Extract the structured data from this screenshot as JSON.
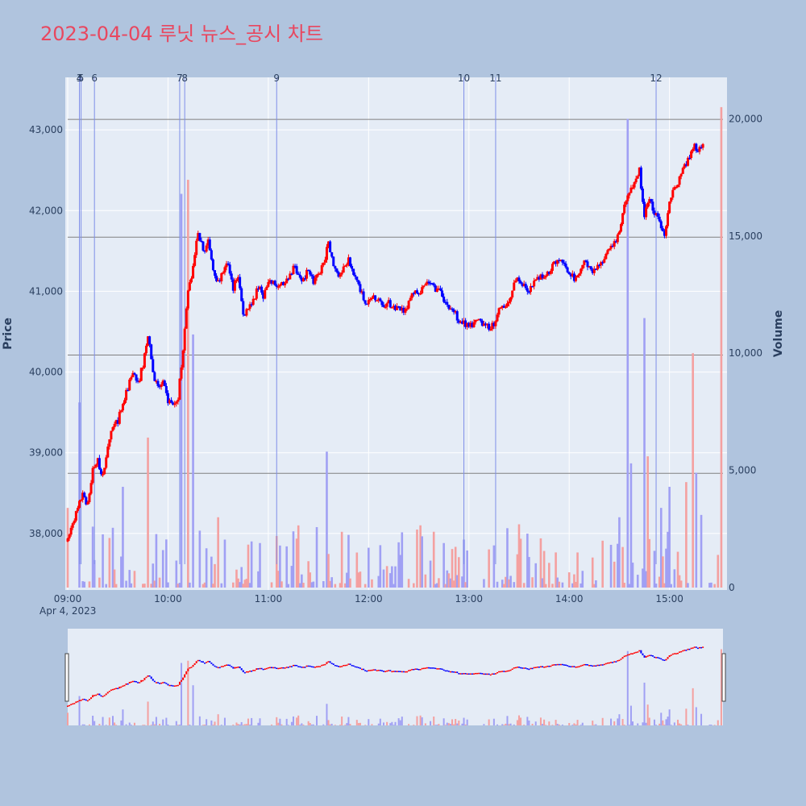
{
  "title": "2023-04-04 루닛 뉴스_공시 차트",
  "chart_data": {
    "type": "candlestick",
    "title": "2023-04-04 루닛 뉴스_공시 차트",
    "date_label": "Apr 4, 2023",
    "x_ticks": [
      "09:00",
      "10:00",
      "11:00",
      "12:00",
      "13:00",
      "14:00",
      "15:00"
    ],
    "x_range": [
      "09:00",
      "15:32"
    ],
    "y_left": {
      "label": "Price",
      "range": [
        37300,
        43650
      ],
      "ticks": [
        "38,000",
        "39,000",
        "40,000",
        "41,000",
        "42,000",
        "43,000"
      ],
      "tick_values": [
        38000,
        39000,
        40000,
        41000,
        42000,
        43000
      ]
    },
    "y_right": {
      "label": "Volume",
      "range": [
        0,
        20600
      ],
      "ticks": [
        "0",
        "5,000",
        "10,000",
        "15,000",
        "20,000"
      ],
      "tick_values": [
        0,
        5000,
        10000,
        15000,
        20000
      ]
    },
    "colors": {
      "up": "#ff0000",
      "down": "#0000ff",
      "vol_up": "#f4a0a0",
      "vol_down": "#a0a0f4",
      "event_line": "#7f8fe8",
      "hline": "#808080",
      "plot_bg": "#e5ecf6"
    },
    "horizontal_lines": [
      38745,
      40210,
      41670,
      43130
    ],
    "event_markers": [
      {
        "label": "3",
        "time": "09:07"
      },
      {
        "label": "4",
        "time": "09:07"
      },
      {
        "label": "5",
        "time": "09:08"
      },
      {
        "label": "6",
        "time": "09:16"
      },
      {
        "label": "7",
        "time": "10:07"
      },
      {
        "label": "8",
        "time": "10:10"
      },
      {
        "label": "9",
        "time": "11:05"
      },
      {
        "label": "10",
        "time": "12:57"
      },
      {
        "label": "11",
        "time": "13:16"
      },
      {
        "label": "12",
        "time": "14:52"
      }
    ],
    "price_path": [
      [
        "09:00",
        37900
      ],
      [
        "09:03",
        38150
      ],
      [
        "09:06",
        38300
      ],
      [
        "09:09",
        38500
      ],
      [
        "09:12",
        38350
      ],
      [
        "09:15",
        38800
      ],
      [
        "09:18",
        38900
      ],
      [
        "09:21",
        38700
      ],
      [
        "09:24",
        39100
      ],
      [
        "09:27",
        39300
      ],
      [
        "09:30",
        39400
      ],
      [
        "09:33",
        39600
      ],
      [
        "09:36",
        39800
      ],
      [
        "09:39",
        40000
      ],
      [
        "09:42",
        39850
      ],
      [
        "09:45",
        40100
      ],
      [
        "09:48",
        40450
      ],
      [
        "09:51",
        40000
      ],
      [
        "09:54",
        39800
      ],
      [
        "09:57",
        39850
      ],
      [
        "10:00",
        39650
      ],
      [
        "10:03",
        39600
      ],
      [
        "10:06",
        39700
      ],
      [
        "10:09",
        40300
      ],
      [
        "10:12",
        41000
      ],
      [
        "10:15",
        41300
      ],
      [
        "10:18",
        41750
      ],
      [
        "10:21",
        41500
      ],
      [
        "10:24",
        41600
      ],
      [
        "10:27",
        41300
      ],
      [
        "10:30",
        41100
      ],
      [
        "10:33",
        41250
      ],
      [
        "10:36",
        41350
      ],
      [
        "10:39",
        41050
      ],
      [
        "10:42",
        41200
      ],
      [
        "10:45",
        40700
      ],
      [
        "10:48",
        40800
      ],
      [
        "10:51",
        40900
      ],
      [
        "10:54",
        41050
      ],
      [
        "10:57",
        40950
      ],
      [
        "11:00",
        41100
      ],
      [
        "11:03",
        41100
      ],
      [
        "11:06",
        41050
      ],
      [
        "11:09",
        41100
      ],
      [
        "11:12",
        41150
      ],
      [
        "11:15",
        41300
      ],
      [
        "11:18",
        41200
      ],
      [
        "11:21",
        41150
      ],
      [
        "11:24",
        41300
      ],
      [
        "11:27",
        41100
      ],
      [
        "11:30",
        41200
      ],
      [
        "11:33",
        41350
      ],
      [
        "11:36",
        41600
      ],
      [
        "11:39",
        41300
      ],
      [
        "11:42",
        41200
      ],
      [
        "11:45",
        41300
      ],
      [
        "11:48",
        41400
      ],
      [
        "11:51",
        41200
      ],
      [
        "11:54",
        41100
      ],
      [
        "11:57",
        40900
      ],
      [
        "12:00",
        40850
      ],
      [
        "12:03",
        40950
      ],
      [
        "12:06",
        40900
      ],
      [
        "12:09",
        40850
      ],
      [
        "12:12",
        40850
      ],
      [
        "12:15",
        40800
      ],
      [
        "12:18",
        40800
      ],
      [
        "12:21",
        40750
      ],
      [
        "12:24",
        40850
      ],
      [
        "12:27",
        41000
      ],
      [
        "12:30",
        41000
      ],
      [
        "12:33",
        41050
      ],
      [
        "12:36",
        41100
      ],
      [
        "12:39",
        41050
      ],
      [
        "12:42",
        41000
      ],
      [
        "12:45",
        40900
      ],
      [
        "12:48",
        40800
      ],
      [
        "12:51",
        40750
      ],
      [
        "12:54",
        40650
      ],
      [
        "12:57",
        40600
      ],
      [
        "13:00",
        40550
      ],
      [
        "13:03",
        40600
      ],
      [
        "13:06",
        40650
      ],
      [
        "13:09",
        40600
      ],
      [
        "13:12",
        40550
      ],
      [
        "13:15",
        40600
      ],
      [
        "13:18",
        40750
      ],
      [
        "13:21",
        40800
      ],
      [
        "13:24",
        40850
      ],
      [
        "13:27",
        41100
      ],
      [
        "13:30",
        41150
      ],
      [
        "13:33",
        41050
      ],
      [
        "13:36",
        41000
      ],
      [
        "13:39",
        41100
      ],
      [
        "13:42",
        41150
      ],
      [
        "13:45",
        41200
      ],
      [
        "13:48",
        41250
      ],
      [
        "13:51",
        41350
      ],
      [
        "13:54",
        41400
      ],
      [
        "13:57",
        41300
      ],
      [
        "14:00",
        41250
      ],
      [
        "14:03",
        41150
      ],
      [
        "14:06",
        41200
      ],
      [
        "14:09",
        41350
      ],
      [
        "14:12",
        41300
      ],
      [
        "14:15",
        41250
      ],
      [
        "14:18",
        41350
      ],
      [
        "14:21",
        41400
      ],
      [
        "14:24",
        41500
      ],
      [
        "14:27",
        41600
      ],
      [
        "14:30",
        41700
      ],
      [
        "14:33",
        42050
      ],
      [
        "14:36",
        42200
      ],
      [
        "14:39",
        42350
      ],
      [
        "14:42",
        42500
      ],
      [
        "14:45",
        41950
      ],
      [
        "14:48",
        42150
      ],
      [
        "14:51",
        41950
      ],
      [
        "14:54",
        41900
      ],
      [
        "14:57",
        41650
      ],
      [
        "15:00",
        42150
      ],
      [
        "15:03",
        42250
      ],
      [
        "15:06",
        42400
      ],
      [
        "15:09",
        42550
      ],
      [
        "15:12",
        42650
      ],
      [
        "15:15",
        42800
      ],
      [
        "15:18",
        42750
      ],
      [
        "15:20",
        42800
      ]
    ],
    "volume_spikes": [
      [
        "09:00",
        3400
      ],
      [
        "09:07",
        7900
      ],
      [
        "09:15",
        2600
      ],
      [
        "09:33",
        4300
      ],
      [
        "09:48",
        6400
      ],
      [
        "09:57",
        1600
      ],
      [
        "10:08",
        16800
      ],
      [
        "10:12",
        17400
      ],
      [
        "10:15",
        10800
      ],
      [
        "10:30",
        3000
      ],
      [
        "10:55",
        1900
      ],
      [
        "11:05",
        2200
      ],
      [
        "11:15",
        2400
      ],
      [
        "11:35",
        5800
      ],
      [
        "12:00",
        1700
      ],
      [
        "12:45",
        1900
      ],
      [
        "13:15",
        1800
      ],
      [
        "13:30",
        2700
      ],
      [
        "13:43",
        2100
      ],
      [
        "13:52",
        1500
      ],
      [
        "14:20",
        2000
      ],
      [
        "14:30",
        3000
      ],
      [
        "14:35",
        20000
      ],
      [
        "14:37",
        5300
      ],
      [
        "14:45",
        11500
      ],
      [
        "14:47",
        5600
      ],
      [
        "14:55",
        3400
      ],
      [
        "15:00",
        4300
      ],
      [
        "15:10",
        4500
      ],
      [
        "15:14",
        10000
      ],
      [
        "15:16",
        4900
      ],
      [
        "15:19",
        3100
      ],
      [
        "15:31",
        20500
      ]
    ]
  }
}
